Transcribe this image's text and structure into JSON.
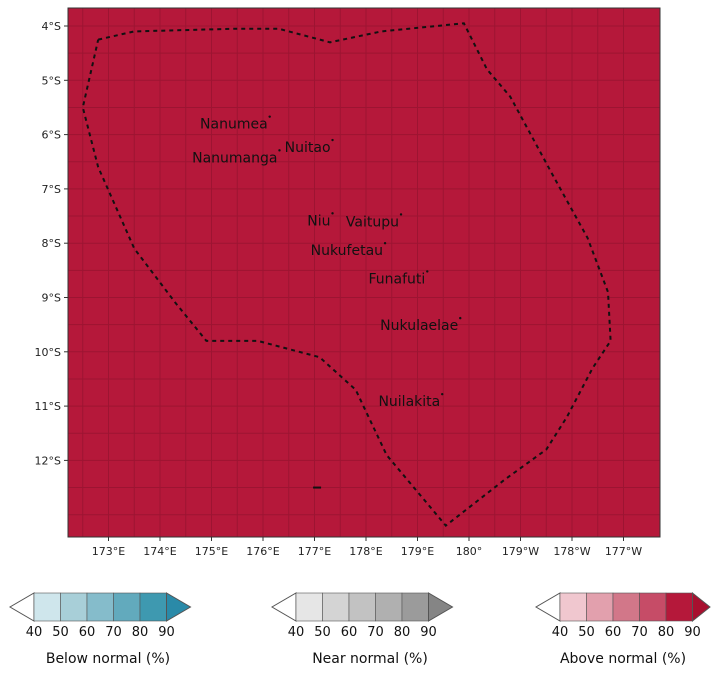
{
  "map": {
    "fill_color": "#b5183a",
    "y_ticks": [
      "4°S",
      "5°S",
      "6°S",
      "7°S",
      "8°S",
      "9°S",
      "10°S",
      "11°S",
      "12°S"
    ],
    "x_ticks": [
      "173°E",
      "174°E",
      "175°E",
      "176°E",
      "177°E",
      "178°E",
      "179°E",
      "180°",
      "179°W",
      "178°W",
      "177°W"
    ],
    "islands": [
      {
        "name": "Nanumea",
        "lon": 176.13,
        "lat": -5.67
      },
      {
        "name": "Nuitao",
        "lon": 177.35,
        "lat": -6.1
      },
      {
        "name": "Nanumanga",
        "lon": 176.32,
        "lat": -6.29
      },
      {
        "name": "Niu",
        "lon": 177.35,
        "lat": -7.45
      },
      {
        "name": "Vaitupu",
        "lon": 178.68,
        "lat": -7.47
      },
      {
        "name": "Nukufetau",
        "lon": 178.37,
        "lat": -8.0
      },
      {
        "name": "Funafuti",
        "lon": 179.19,
        "lat": -8.52
      },
      {
        "name": "Nukulaelae",
        "lon": 179.83,
        "lat": -9.38
      },
      {
        "name": "Nuilakita",
        "lon": 179.48,
        "lat": -10.78
      }
    ],
    "eez_boundary": [
      [
        172.8,
        -4.25
      ],
      [
        173.5,
        -4.1
      ],
      [
        175.5,
        -4.05
      ],
      [
        176.3,
        -4.05
      ],
      [
        177.3,
        -4.3
      ],
      [
        178.3,
        -4.1
      ],
      [
        179.9,
        -3.95
      ],
      [
        180.35,
        -4.8
      ],
      [
        180.8,
        -5.3
      ],
      [
        181.6,
        -6.7
      ],
      [
        182.3,
        -7.9
      ],
      [
        182.7,
        -8.9
      ],
      [
        182.75,
        -9.8
      ],
      [
        182.4,
        -10.3
      ],
      [
        181.9,
        -11.2
      ],
      [
        181.5,
        -11.8
      ],
      [
        180.7,
        -12.35
      ],
      [
        179.55,
        -13.2
      ],
      [
        178.4,
        -11.9
      ],
      [
        177.8,
        -10.7
      ],
      [
        177.1,
        -10.1
      ],
      [
        175.9,
        -9.8
      ],
      [
        174.9,
        -9.8
      ],
      [
        174.3,
        -9.1
      ],
      [
        173.5,
        -8.1
      ],
      [
        172.8,
        -6.6
      ],
      [
        172.5,
        -5.5
      ],
      [
        172.8,
        -4.25
      ]
    ],
    "small_mark": {
      "lon": 177.05,
      "lat": -12.5
    }
  },
  "legends": [
    {
      "title": "Below normal (%)",
      "ticks": [
        "40",
        "50",
        "60",
        "70",
        "80",
        "90"
      ],
      "colors": [
        "#ffffff",
        "#cfe6ec",
        "#a8cfd8",
        "#85bccb",
        "#62aabd",
        "#3e99b0",
        "#2a8aa8"
      ]
    },
    {
      "title": "Near normal (%)",
      "ticks": [
        "40",
        "50",
        "60",
        "70",
        "80",
        "90"
      ],
      "colors": [
        "#ffffff",
        "#e6e6e6",
        "#d4d4d4",
        "#c2c2c2",
        "#b0b0b0",
        "#9b9b9b",
        "#858585"
      ]
    },
    {
      "title": "Above normal (%)",
      "ticks": [
        "40",
        "50",
        "60",
        "70",
        "80",
        "90"
      ],
      "colors": [
        "#ffffff",
        "#f0c7cf",
        "#e2a0ad",
        "#d27789",
        "#c64c67",
        "#b5183a",
        "#a8102f"
      ]
    }
  ]
}
